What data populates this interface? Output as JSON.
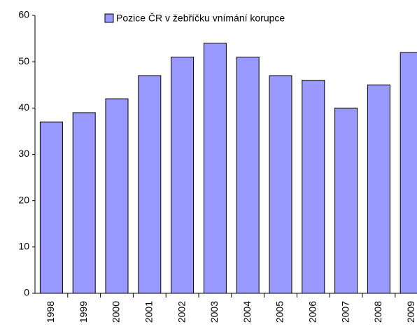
{
  "chart_data": {
    "type": "bar",
    "categories": [
      "1998",
      "1999",
      "2000",
      "2001",
      "2002",
      "2003",
      "2004",
      "2005",
      "2006",
      "2007",
      "2008",
      "2009"
    ],
    "series": [
      {
        "name": "Pozice ČR v žebříčku vnímání korupce",
        "color": "#9999ff",
        "values": [
          37,
          39,
          42,
          47,
          51,
          54,
          51,
          47,
          46,
          40,
          45,
          52
        ]
      }
    ],
    "ylim": [
      0,
      60
    ],
    "yticks": [
      0,
      10,
      20,
      30,
      40,
      50,
      60
    ],
    "grid": false,
    "legend": "top"
  }
}
